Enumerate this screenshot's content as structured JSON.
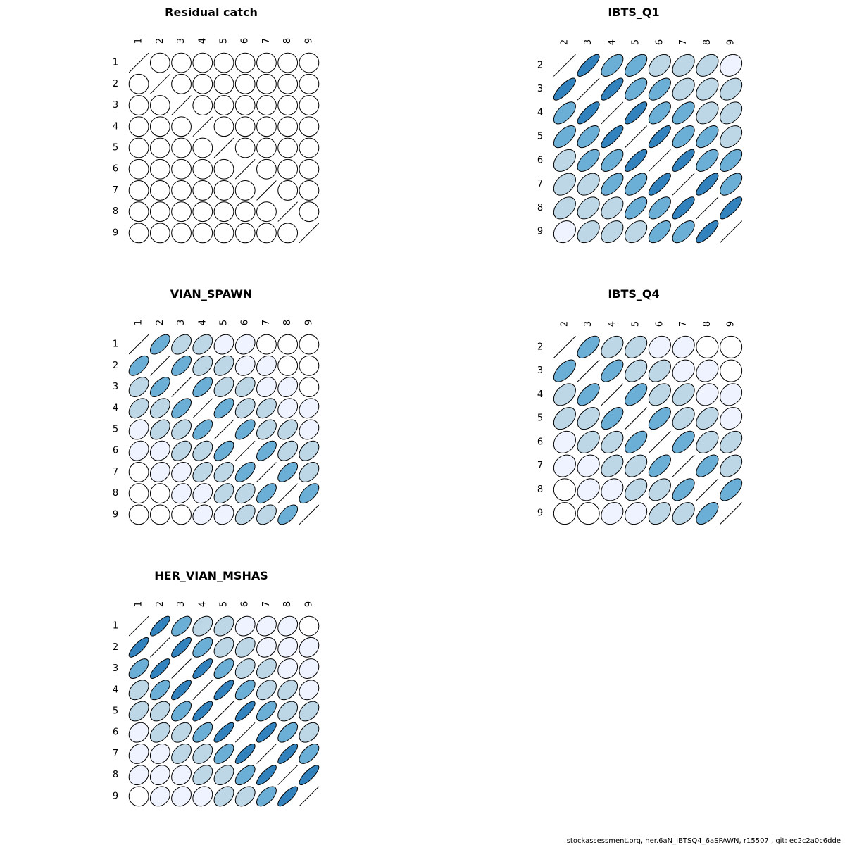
{
  "footer": "stockassessment.org, her.6aN_IBTSQ4_6aSPAWN, r15507 , git: ec2c2a0c6dde",
  "colors": {
    "ramp": [
      "#ffffff",
      "#eff3ff",
      "#bdd7e7",
      "#6baed6",
      "#3182bd"
    ],
    "stroke": "#000000"
  },
  "chart_data": [
    {
      "type": "correlation-ellipse-matrix",
      "title": "Residual catch",
      "labels": [
        "1",
        "2",
        "3",
        "4",
        "5",
        "6",
        "7",
        "8",
        "9"
      ],
      "matrix": [
        [
          1.0,
          0.0,
          0.0,
          0.0,
          0.0,
          0.0,
          0.0,
          0.0,
          0.0
        ],
        [
          0.0,
          1.0,
          0.0,
          0.0,
          0.0,
          0.0,
          0.0,
          0.0,
          0.0
        ],
        [
          0.0,
          0.0,
          1.0,
          0.0,
          0.0,
          0.0,
          0.0,
          0.0,
          0.0
        ],
        [
          0.0,
          0.0,
          0.0,
          1.0,
          0.0,
          0.0,
          0.0,
          0.0,
          0.0
        ],
        [
          0.0,
          0.0,
          0.0,
          0.0,
          1.0,
          0.0,
          0.0,
          0.0,
          0.0
        ],
        [
          0.0,
          0.0,
          0.0,
          0.0,
          0.0,
          1.0,
          0.0,
          0.0,
          0.0
        ],
        [
          0.0,
          0.0,
          0.0,
          0.0,
          0.0,
          0.0,
          1.0,
          0.0,
          0.0
        ],
        [
          0.0,
          0.0,
          0.0,
          0.0,
          0.0,
          0.0,
          0.0,
          1.0,
          0.0
        ],
        [
          0.0,
          0.0,
          0.0,
          0.0,
          0.0,
          0.0,
          0.0,
          0.0,
          1.0
        ]
      ]
    },
    {
      "type": "correlation-ellipse-matrix",
      "title": "IBTS_Q1",
      "labels": [
        "2",
        "3",
        "4",
        "5",
        "6",
        "7",
        "8",
        "9"
      ],
      "matrix": [
        [
          1.0,
          0.8,
          0.6,
          0.6,
          0.4,
          0.4,
          0.4,
          0.2
        ],
        [
          0.8,
          1.0,
          0.8,
          0.6,
          0.6,
          0.4,
          0.4,
          0.4
        ],
        [
          0.6,
          0.8,
          1.0,
          0.8,
          0.6,
          0.6,
          0.4,
          0.4
        ],
        [
          0.6,
          0.6,
          0.8,
          1.0,
          0.8,
          0.6,
          0.6,
          0.4
        ],
        [
          0.4,
          0.6,
          0.6,
          0.8,
          1.0,
          0.8,
          0.6,
          0.6
        ],
        [
          0.4,
          0.4,
          0.6,
          0.6,
          0.8,
          1.0,
          0.8,
          0.6
        ],
        [
          0.4,
          0.4,
          0.4,
          0.6,
          0.6,
          0.8,
          1.0,
          0.8
        ],
        [
          0.2,
          0.4,
          0.4,
          0.4,
          0.6,
          0.6,
          0.8,
          1.0
        ]
      ]
    },
    {
      "type": "correlation-ellipse-matrix",
      "title": "VIAN_SPAWN",
      "labels": [
        "1",
        "2",
        "3",
        "4",
        "5",
        "6",
        "7",
        "8",
        "9"
      ],
      "matrix": [
        [
          1.0,
          0.6,
          0.4,
          0.4,
          0.2,
          0.2,
          0.0,
          0.0,
          0.0
        ],
        [
          0.6,
          1.0,
          0.6,
          0.4,
          0.4,
          0.2,
          0.2,
          0.0,
          0.0
        ],
        [
          0.4,
          0.6,
          1.0,
          0.6,
          0.4,
          0.4,
          0.2,
          0.2,
          0.0
        ],
        [
          0.4,
          0.4,
          0.6,
          1.0,
          0.6,
          0.4,
          0.4,
          0.2,
          0.2
        ],
        [
          0.2,
          0.4,
          0.4,
          0.6,
          1.0,
          0.6,
          0.4,
          0.4,
          0.2
        ],
        [
          0.2,
          0.2,
          0.4,
          0.4,
          0.6,
          1.0,
          0.6,
          0.4,
          0.4
        ],
        [
          0.0,
          0.2,
          0.2,
          0.4,
          0.4,
          0.6,
          1.0,
          0.6,
          0.4
        ],
        [
          0.0,
          0.0,
          0.2,
          0.2,
          0.4,
          0.4,
          0.6,
          1.0,
          0.6
        ],
        [
          0.0,
          0.0,
          0.0,
          0.2,
          0.2,
          0.4,
          0.4,
          0.6,
          1.0
        ]
      ]
    },
    {
      "type": "correlation-ellipse-matrix",
      "title": "IBTS_Q4",
      "labels": [
        "2",
        "3",
        "4",
        "5",
        "6",
        "7",
        "8",
        "9"
      ],
      "matrix": [
        [
          1.0,
          0.6,
          0.4,
          0.4,
          0.2,
          0.2,
          0.0,
          0.0
        ],
        [
          0.6,
          1.0,
          0.6,
          0.4,
          0.4,
          0.2,
          0.2,
          0.0
        ],
        [
          0.4,
          0.6,
          1.0,
          0.6,
          0.4,
          0.4,
          0.2,
          0.2
        ],
        [
          0.4,
          0.4,
          0.6,
          1.0,
          0.6,
          0.4,
          0.4,
          0.2
        ],
        [
          0.2,
          0.4,
          0.4,
          0.6,
          1.0,
          0.6,
          0.4,
          0.4
        ],
        [
          0.2,
          0.2,
          0.4,
          0.4,
          0.6,
          1.0,
          0.6,
          0.4
        ],
        [
          0.0,
          0.2,
          0.2,
          0.4,
          0.4,
          0.6,
          1.0,
          0.6
        ],
        [
          0.0,
          0.0,
          0.2,
          0.2,
          0.4,
          0.4,
          0.6,
          1.0
        ]
      ]
    },
    {
      "type": "correlation-ellipse-matrix",
      "title": "HER_VIAN_MSHAS",
      "labels": [
        "1",
        "2",
        "3",
        "4",
        "5",
        "6",
        "7",
        "8",
        "9"
      ],
      "matrix": [
        [
          1.0,
          0.8,
          0.6,
          0.4,
          0.4,
          0.2,
          0.2,
          0.2,
          0.0
        ],
        [
          0.8,
          1.0,
          0.8,
          0.6,
          0.4,
          0.4,
          0.2,
          0.2,
          0.2
        ],
        [
          0.6,
          0.8,
          1.0,
          0.8,
          0.6,
          0.4,
          0.4,
          0.2,
          0.2
        ],
        [
          0.4,
          0.6,
          0.8,
          1.0,
          0.8,
          0.6,
          0.4,
          0.4,
          0.2
        ],
        [
          0.4,
          0.4,
          0.6,
          0.8,
          1.0,
          0.8,
          0.6,
          0.4,
          0.4
        ],
        [
          0.2,
          0.4,
          0.4,
          0.6,
          0.8,
          1.0,
          0.8,
          0.6,
          0.4
        ],
        [
          0.2,
          0.2,
          0.4,
          0.4,
          0.6,
          0.8,
          1.0,
          0.8,
          0.6
        ],
        [
          0.2,
          0.2,
          0.2,
          0.4,
          0.4,
          0.6,
          0.8,
          1.0,
          0.8
        ],
        [
          0.0,
          0.2,
          0.2,
          0.2,
          0.4,
          0.4,
          0.6,
          0.8,
          1.0
        ]
      ]
    }
  ]
}
